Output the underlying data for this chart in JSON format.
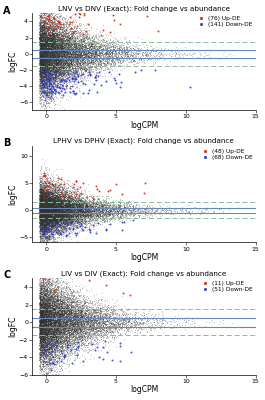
{
  "panels": [
    {
      "label": "A",
      "title": "LNV vs DNV (Exact): Fold change vs abundance",
      "up_label": "(76) Up-DE",
      "down_label": "(141) Down-DE",
      "n_background": 15000,
      "n_up": 76,
      "n_down": 141,
      "xlim": [
        -1,
        15
      ],
      "ylim": [
        -7,
        5
      ],
      "yticks": [
        -6,
        -4,
        -2,
        0,
        2,
        4
      ],
      "xticks": [
        0,
        5,
        10,
        15
      ],
      "hline_solid": [
        -0.5,
        0.5
      ],
      "hline_dashed": [
        -1.5,
        1.5
      ],
      "seed": 42
    },
    {
      "label": "B",
      "title": "LPHV vs DPHV (Exact): Fold change vs abundance",
      "up_label": "(48) Up-DE",
      "down_label": "(68) Down-DE",
      "n_background": 15000,
      "n_up": 48,
      "n_down": 68,
      "xlim": [
        -1,
        15
      ],
      "ylim": [
        -6,
        12
      ],
      "yticks": [
        -5,
        0,
        5,
        10
      ],
      "xticks": [
        0,
        5,
        10,
        15
      ],
      "hline_solid": [
        -0.5,
        0.5
      ],
      "hline_dashed": [
        -1.5,
        1.5
      ],
      "seed": 99
    },
    {
      "label": "C",
      "title": "LIV vs DIV (Exact): Fold change vs abundance",
      "up_label": "(11) Up-DE",
      "down_label": "(51) Down-DE",
      "n_background": 15000,
      "n_up": 11,
      "n_down": 51,
      "xlim": [
        -1,
        15
      ],
      "ylim": [
        -6,
        5
      ],
      "yticks": [
        -6,
        -4,
        -2,
        0,
        2,
        4
      ],
      "xticks": [
        0,
        5,
        10,
        15
      ],
      "hline_solid": [
        -0.5,
        0.5
      ],
      "hline_dashed": [
        -1.5,
        1.5
      ],
      "seed": 7
    }
  ],
  "bg_color": "#333333",
  "up_color": "#cc2200",
  "down_color": "#2233cc",
  "solid_line_color": "#6688bb",
  "dashed_line_color": "#88bb99",
  "xlabel": "logCPM",
  "ylabel": "logFC",
  "title_fontsize": 5.2,
  "label_fontsize": 5.5,
  "tick_fontsize": 4.5,
  "legend_fontsize": 4.2,
  "marker_size_bg": 0.6,
  "marker_size_de": 2.0
}
